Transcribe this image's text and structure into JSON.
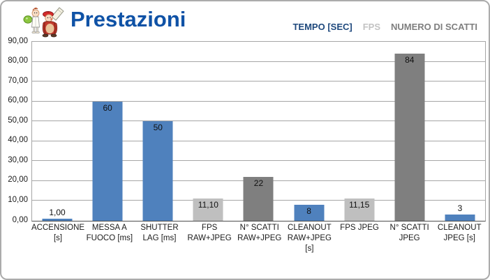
{
  "header": {
    "title": "Prestazioni",
    "logo": "cartoon-photographers-logo"
  },
  "legend": {
    "items": [
      {
        "label": "TEMPO [SEC]",
        "color": "#1F497D"
      },
      {
        "label": "FPS",
        "color": "#C3C3C3"
      },
      {
        "label": "NUMERO DI SCATTI",
        "color": "#7F7F7F"
      }
    ]
  },
  "chart_data": {
    "type": "bar",
    "title": "Prestazioni",
    "ylim": [
      0,
      90
    ],
    "ytick_step": 10,
    "ytick_labels": [
      "0,00",
      "10,00",
      "20,00",
      "30,00",
      "40,00",
      "50,00",
      "60,00",
      "70,00",
      "80,00",
      "90,00"
    ],
    "grid": true,
    "legend_position": "top-right",
    "series_colors": {
      "TEMPO [SEC]": "#4F81BD",
      "FPS": "#BFBFBF",
      "NUMERO DI SCATTI": "#7F7F7F"
    },
    "points": [
      {
        "category": "ACCENSIONE [s]",
        "category_lines": [
          "ACCENSIONE",
          "[s]"
        ],
        "value": 1.0,
        "label": "1,00",
        "series": "TEMPO [SEC]"
      },
      {
        "category": "MESSA A FUOCO [ms]",
        "category_lines": [
          "MESSA A",
          "FUOCO [ms]"
        ],
        "value": 60,
        "label": "60",
        "series": "TEMPO [SEC]"
      },
      {
        "category": "SHUTTER LAG [ms]",
        "category_lines": [
          "SHUTTER",
          "LAG [ms]"
        ],
        "value": 50,
        "label": "50",
        "series": "TEMPO [SEC]"
      },
      {
        "category": "FPS RAW+JPEG",
        "category_lines": [
          "FPS",
          "RAW+JPEG"
        ],
        "value": 11.1,
        "label": "11,10",
        "series": "FPS"
      },
      {
        "category": "N° SCATTI RAW+JPEG",
        "category_lines": [
          "N° SCATTI",
          "RAW+JPEG"
        ],
        "value": 22,
        "label": "22",
        "series": "NUMERO DI SCATTI"
      },
      {
        "category": "CLEANOUT RAW+JPEG [s]",
        "category_lines": [
          "CLEANOUT",
          "RAW+JPEG",
          "[s]"
        ],
        "value": 8,
        "label": "8",
        "series": "TEMPO [SEC]"
      },
      {
        "category": "FPS JPEG",
        "category_lines": [
          "FPS JPEG"
        ],
        "value": 11.15,
        "label": "11,15",
        "series": "FPS"
      },
      {
        "category": "N° SCATTI JPEG",
        "category_lines": [
          "N° SCATTI",
          "JPEG"
        ],
        "value": 84,
        "label": "84",
        "series": "NUMERO DI SCATTI"
      },
      {
        "category": "CLEANOUT JPEG [s]",
        "category_lines": [
          "CLEANOUT",
          "JPEG [s]"
        ],
        "value": 3,
        "label": "3",
        "series": "TEMPO [SEC]"
      }
    ]
  }
}
